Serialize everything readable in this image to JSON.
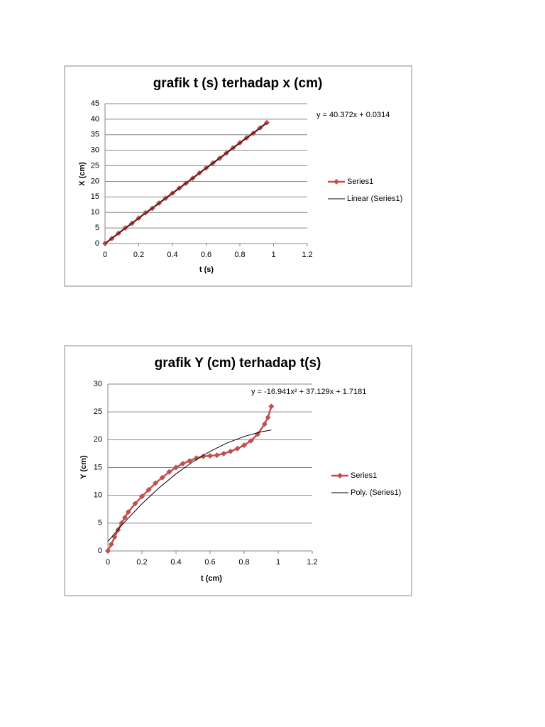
{
  "chart_data": [
    {
      "type": "line",
      "title": "grafik t (s) terhadap x (cm)",
      "x_label": "t (s)",
      "y_label": "X (cm)",
      "annotation": "y = 40.372x + 0.0314",
      "xlim": [
        0,
        1.2
      ],
      "xticks": [
        0,
        0.2,
        0.4,
        0.6,
        0.8,
        1,
        1.2
      ],
      "ylim": [
        0,
        45
      ],
      "yticks": [
        0,
        5,
        10,
        15,
        20,
        25,
        30,
        35,
        40,
        45
      ],
      "grid": true,
      "series": [
        {
          "name": "Series1",
          "color": "#c0504d",
          "marker": "diamond",
          "x": [
            0,
            0.04,
            0.08,
            0.12,
            0.16,
            0.2,
            0.24,
            0.28,
            0.32,
            0.36,
            0.4,
            0.44,
            0.48,
            0.52,
            0.56,
            0.6,
            0.64,
            0.68,
            0.72,
            0.76,
            0.8,
            0.84,
            0.88,
            0.92,
            0.96
          ],
          "values": [
            0,
            1.6,
            3.3,
            5,
            6.5,
            8.2,
            9.9,
            11.3,
            13,
            14.6,
            16.2,
            17.8,
            19.4,
            21,
            22.7,
            24.3,
            25.9,
            27.4,
            29.1,
            30.8,
            32.4,
            34,
            35.5,
            37.2,
            38.9
          ]
        },
        {
          "name": "Linear (Series1)",
          "color": "#000000",
          "marker": "none",
          "x": [
            0,
            0.96
          ],
          "values": [
            0.0314,
            38.79
          ]
        }
      ]
    },
    {
      "type": "line",
      "title": "grafik Y (cm) terhadap t(s)",
      "x_label": "t (cm)",
      "y_label": "Y (cm)",
      "annotation": "y = -16.941x² + 37.129x + 1.7181",
      "xlim": [
        0,
        1.2
      ],
      "xticks": [
        0,
        0.2,
        0.4,
        0.6,
        0.8,
        1,
        1.2
      ],
      "ylim": [
        0,
        30
      ],
      "yticks": [
        0,
        5,
        10,
        15,
        20,
        25,
        30
      ],
      "grid": true,
      "series": [
        {
          "name": "Series1",
          "color": "#c0504d",
          "marker": "diamond",
          "x": [
            0,
            0.02,
            0.04,
            0.06,
            0.08,
            0.1,
            0.12,
            0.16,
            0.2,
            0.24,
            0.28,
            0.32,
            0.36,
            0.4,
            0.44,
            0.48,
            0.52,
            0.56,
            0.6,
            0.64,
            0.68,
            0.72,
            0.76,
            0.8,
            0.84,
            0.88,
            0.92,
            0.94,
            0.96
          ],
          "values": [
            0,
            1.2,
            2.5,
            3.8,
            5,
            6,
            7,
            8.5,
            9.8,
            11,
            12.2,
            13.2,
            14.2,
            15,
            15.7,
            16.2,
            16.7,
            17,
            17.1,
            17.2,
            17.5,
            17.9,
            18.4,
            19,
            19.8,
            21,
            22.8,
            24,
            26
          ]
        },
        {
          "name": "Poly. (Series1)",
          "color": "#000000",
          "marker": "none",
          "x": [
            0,
            0.1,
            0.2,
            0.3,
            0.4,
            0.5,
            0.6,
            0.7,
            0.8,
            0.9,
            0.96
          ],
          "values": [
            1.72,
            5.26,
            8.47,
            11.33,
            13.86,
            16.05,
            17.9,
            19.41,
            20.58,
            21.41,
            21.75
          ]
        }
      ]
    }
  ]
}
